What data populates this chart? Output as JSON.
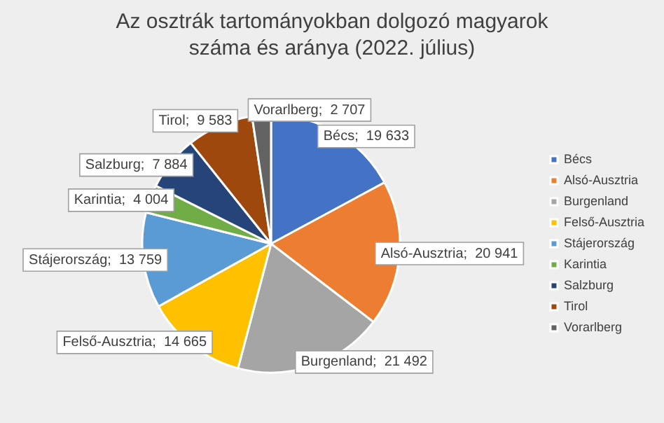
{
  "chart_data": {
    "type": "pie",
    "title": "Az osztrák tartományokban dolgozó magyarok száma és aránya  (2022. július)",
    "categories": [
      "Bécs",
      "Alsó-Ausztria",
      "Burgenland",
      "Felső-Ausztria",
      "Stájerország",
      "Karintia",
      "Salzburg",
      "Tirol",
      "Vorarlberg"
    ],
    "values": [
      19633,
      20941,
      21492,
      14665,
      13759,
      4004,
      7884,
      9583,
      2707
    ],
    "value_labels": [
      "Bécs;  19 633",
      "Alsó-Ausztria;  20 941",
      "Burgenland;  21 492",
      "Felső-Ausztria;  14 665",
      "Stájerország;  13 759",
      "Karintia;  4 004",
      "Salzburg;  7 884",
      "Tirol;  9 583",
      "Vorarlberg;  2 707"
    ],
    "colors": [
      "#4472c4",
      "#ed7d31",
      "#a5a5a5",
      "#ffc000",
      "#5b9bd5",
      "#70ad47",
      "#264478",
      "#9e480e",
      "#636363"
    ],
    "legend": "right"
  }
}
